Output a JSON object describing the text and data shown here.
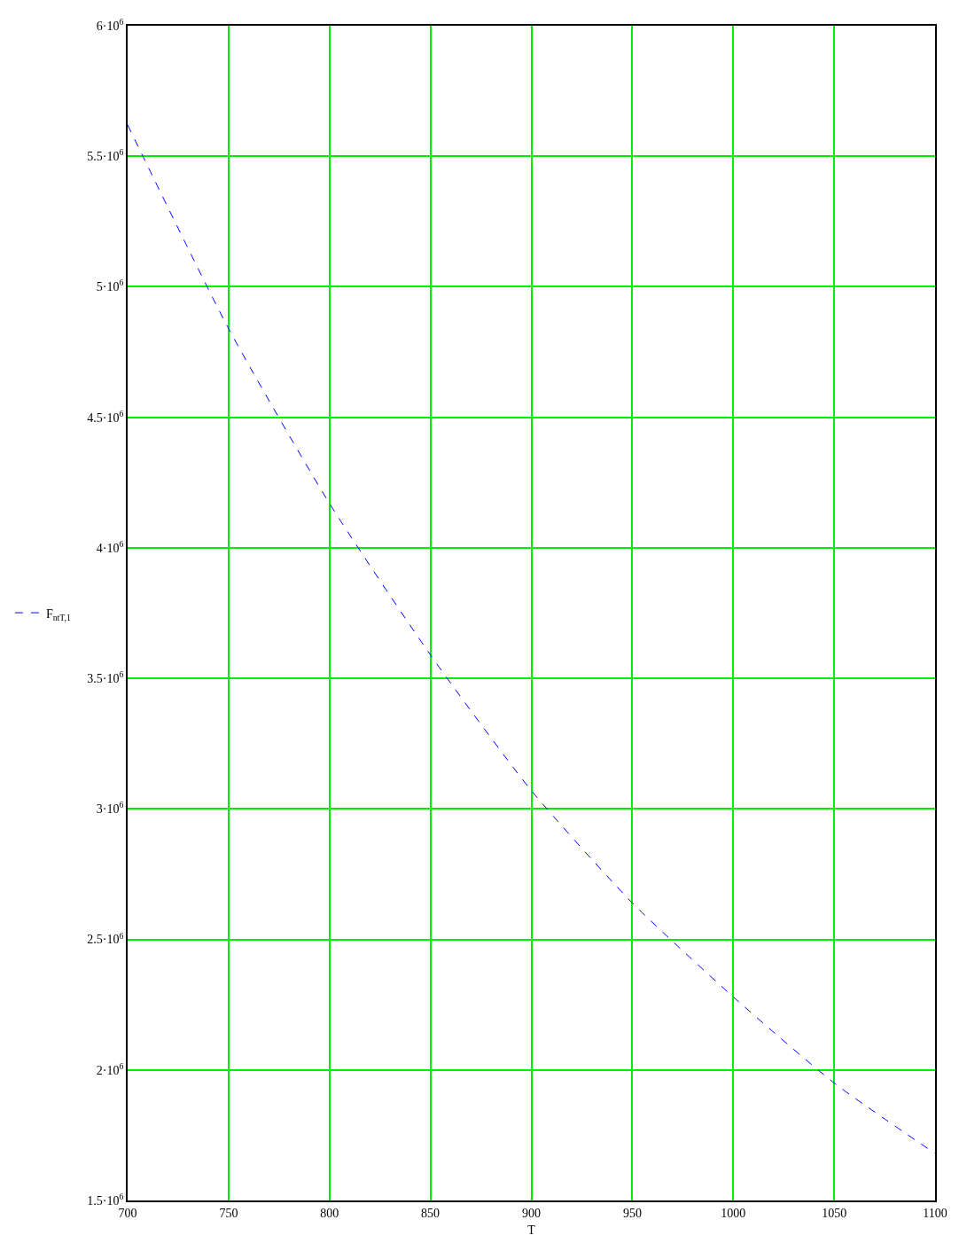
{
  "chart_data": {
    "type": "line",
    "xlabel": "T",
    "x": [
      700,
      750,
      800,
      850,
      900,
      950,
      1000,
      1050,
      1100
    ],
    "series": [
      {
        "name": "F$_{nt}$$_{T,1}$",
        "color": "#0000ff",
        "values": [
          5620000.0,
          4840000.0,
          4170000.0,
          3590000.0,
          3070000.0,
          2640000.0,
          2280000.0,
          1950000.0,
          1680000.0
        ]
      }
    ],
    "xlim": [
      700,
      1100
    ],
    "xticks": [
      700,
      750,
      800,
      850,
      900,
      950,
      1000,
      1050,
      1100
    ],
    "ylim": [
      1500000.0,
      6000000.0
    ],
    "yticks": [
      {
        "value": 1500000.0,
        "label": "1.5·10$^{6}$"
      },
      {
        "value": 2000000.0,
        "label": "2·10$^{6}$"
      },
      {
        "value": 2500000.0,
        "label": "2.5·10$^{6}$"
      },
      {
        "value": 3000000.0,
        "label": "3·10$^{6}$"
      },
      {
        "value": 3500000.0,
        "label": "3.5·10$^{6}$"
      },
      {
        "value": 4000000.0,
        "label": "4·10$^{6}$"
      },
      {
        "value": 4500000.0,
        "label": "4.5·10$^{6}$"
      },
      {
        "value": 5000000.0,
        "label": "5·10$^{6}$"
      },
      {
        "value": 5500000.0,
        "label": "5.5·10$^{6}$"
      },
      {
        "value": 6000000.0,
        "label": "6·10$^{6}$"
      }
    ],
    "grid": true,
    "legend": "left",
    "marker": "none",
    "line_style": "dashed"
  }
}
